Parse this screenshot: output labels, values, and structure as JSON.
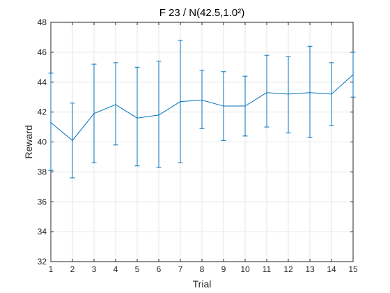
{
  "chart_data": {
    "type": "line",
    "title": "F 23 / N(42.5,1.0²)",
    "xlabel": "Trial",
    "ylabel": "Reward",
    "xlim": [
      1,
      15
    ],
    "ylim": [
      32,
      48
    ],
    "xticks": [
      1,
      2,
      3,
      4,
      5,
      6,
      7,
      8,
      9,
      10,
      11,
      12,
      13,
      14,
      15
    ],
    "yticks": [
      32,
      34,
      36,
      38,
      40,
      42,
      44,
      46,
      48
    ],
    "grid": true,
    "colors": {
      "series": "#0072BD",
      "grid": "#e6e6e6",
      "axis": "#262626"
    },
    "series": [
      {
        "x": [
          1,
          2,
          3,
          4,
          5,
          6,
          7,
          8,
          9,
          10,
          11,
          12,
          13,
          14,
          15
        ],
        "y": [
          41.3,
          40.1,
          41.9,
          42.5,
          41.6,
          41.8,
          42.7,
          42.8,
          42.4,
          42.4,
          43.3,
          43.2,
          43.3,
          43.2,
          44.5
        ],
        "err_low": [
          38.1,
          37.6,
          38.6,
          39.8,
          38.4,
          38.3,
          38.6,
          40.9,
          40.1,
          40.4,
          41.0,
          40.6,
          40.3,
          41.1,
          43.0
        ],
        "err_high": [
          44.6,
          42.6,
          45.2,
          45.3,
          45.0,
          45.4,
          46.8,
          44.8,
          44.7,
          44.4,
          45.8,
          45.7,
          46.4,
          45.3,
          46.0
        ]
      }
    ]
  }
}
